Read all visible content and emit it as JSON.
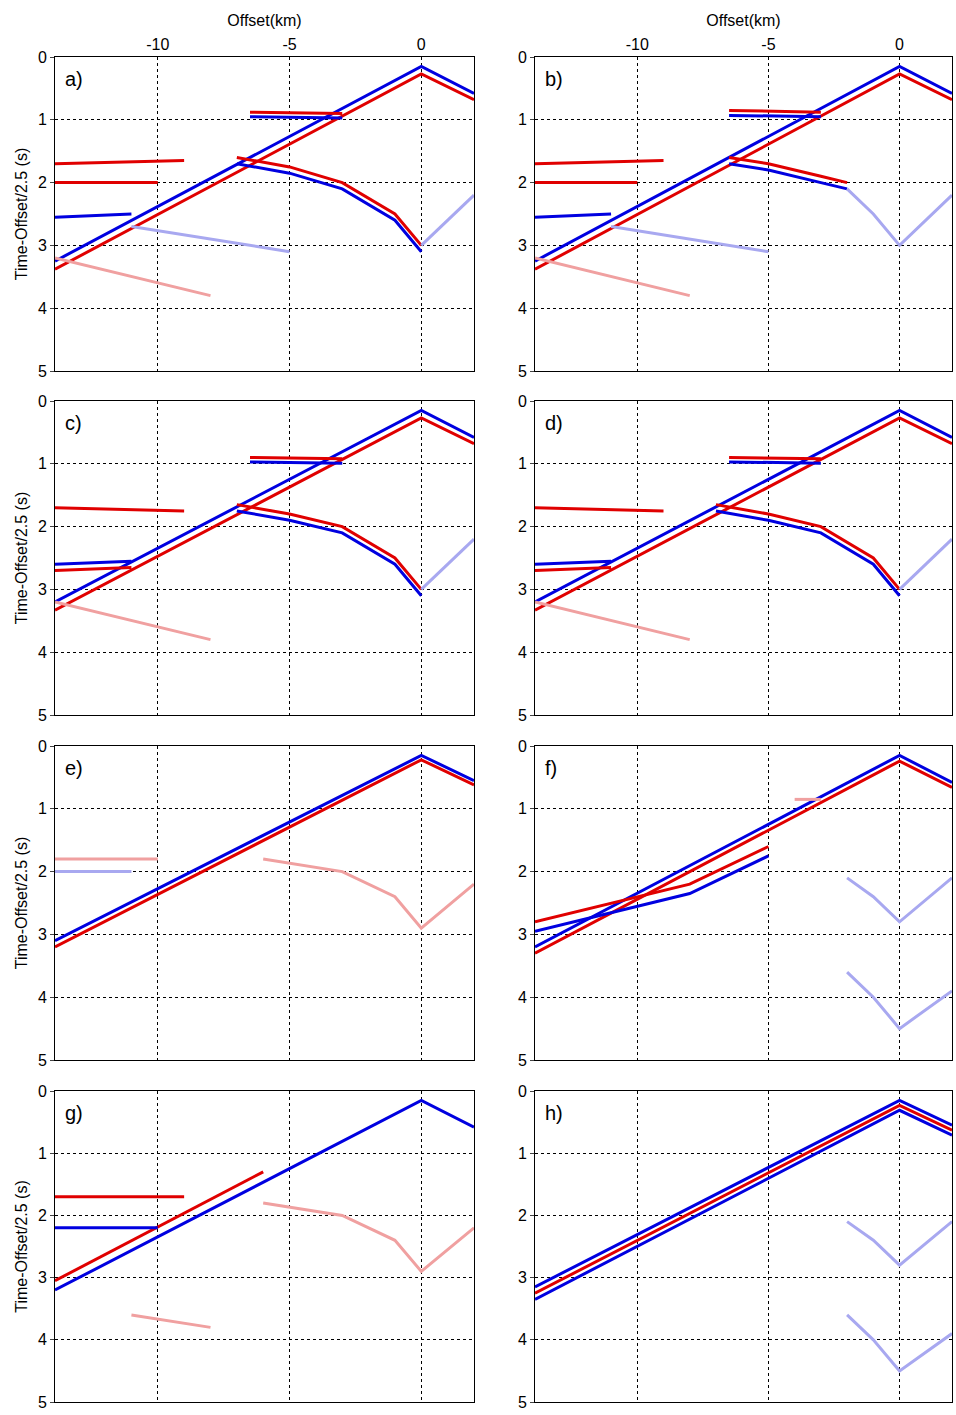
{
  "chart_data": [
    {
      "type": "line",
      "annotations": [
        "a)"
      ],
      "x_label": "Offset(km)",
      "y_label": "Time-Offset/2.5 (s)",
      "tick_labels": true,
      "grid": true,
      "xlim": [
        -13.9,
        2
      ],
      "ylim": [
        5,
        0
      ],
      "xticks": [
        -10,
        -5,
        0
      ],
      "yticks": [
        0,
        1,
        2,
        3,
        4,
        5
      ],
      "series": [
        {
          "color": "#0000e0",
          "x": [
            -13.9,
            0,
            2
          ],
          "values": [
            3.25,
            0.15,
            0.58
          ]
        },
        {
          "color": "#e00000",
          "x": [
            -13.9,
            0,
            2
          ],
          "values": [
            3.38,
            0.27,
            0.68
          ]
        },
        {
          "color": "#e00000",
          "x": [
            -6.5,
            -3
          ],
          "values": [
            0.88,
            0.9
          ]
        },
        {
          "color": "#0000e0",
          "x": [
            -6.5,
            -3
          ],
          "values": [
            0.95,
            0.97
          ]
        },
        {
          "color": "#e00000",
          "x": [
            -7,
            -5,
            -3,
            -1,
            0
          ],
          "values": [
            1.6,
            1.75,
            2.0,
            2.5,
            3.0
          ]
        },
        {
          "color": "#0000e0",
          "x": [
            -7,
            -5,
            -3,
            -1,
            0
          ],
          "values": [
            1.7,
            1.85,
            2.1,
            2.6,
            3.1
          ]
        },
        {
          "color": "#a8a8f0",
          "x": [
            0,
            2
          ],
          "values": [
            3.0,
            2.2
          ]
        },
        {
          "color": "#e00000",
          "x": [
            -13.9,
            -9
          ],
          "values": [
            1.7,
            1.65
          ]
        },
        {
          "color": "#e00000",
          "x": [
            -13.9,
            -10
          ],
          "values": [
            2.0,
            2.0
          ]
        },
        {
          "color": "#0000e0",
          "x": [
            -13.9,
            -11
          ],
          "values": [
            2.55,
            2.5
          ]
        },
        {
          "color": "#f0a0a0",
          "x": [
            -13.9,
            -8
          ],
          "values": [
            3.2,
            3.8
          ]
        },
        {
          "color": "#a8a8f0",
          "x": [
            -11,
            -5
          ],
          "values": [
            2.7,
            3.1
          ]
        }
      ]
    },
    {
      "type": "line",
      "annotations": [
        "b)"
      ],
      "x_label": "Offset(km)",
      "tick_labels": true,
      "grid": true,
      "xlim": [
        -13.9,
        2
      ],
      "ylim": [
        5,
        0
      ],
      "xticks": [
        -10,
        -5,
        0
      ],
      "yticks": [
        0,
        1,
        2,
        3,
        4,
        5
      ],
      "series": [
        {
          "color": "#0000e0",
          "x": [
            -13.9,
            0,
            2
          ],
          "values": [
            3.25,
            0.15,
            0.58
          ]
        },
        {
          "color": "#e00000",
          "x": [
            -13.9,
            0,
            2
          ],
          "values": [
            3.38,
            0.27,
            0.68
          ]
        },
        {
          "color": "#e00000",
          "x": [
            -6.5,
            -3
          ],
          "values": [
            0.85,
            0.88
          ]
        },
        {
          "color": "#0000e0",
          "x": [
            -6.5,
            -3
          ],
          "values": [
            0.93,
            0.95
          ]
        },
        {
          "color": "#e00000",
          "x": [
            -6.5,
            -5,
            -3,
            -2
          ],
          "values": [
            1.6,
            1.7,
            1.9,
            2.0
          ]
        },
        {
          "color": "#0000e0",
          "x": [
            -6.5,
            -5,
            -3,
            -2
          ],
          "values": [
            1.7,
            1.8,
            2.0,
            2.1
          ]
        },
        {
          "color": "#a8a8f0",
          "x": [
            -2,
            -1,
            0,
            2
          ],
          "values": [
            2.1,
            2.5,
            3.0,
            2.2
          ]
        },
        {
          "color": "#e00000",
          "x": [
            -13.9,
            -9
          ],
          "values": [
            1.7,
            1.65
          ]
        },
        {
          "color": "#e00000",
          "x": [
            -13.9,
            -10
          ],
          "values": [
            2.0,
            2.0
          ]
        },
        {
          "color": "#0000e0",
          "x": [
            -13.9,
            -11
          ],
          "values": [
            2.55,
            2.5
          ]
        },
        {
          "color": "#f0a0a0",
          "x": [
            -13.9,
            -8
          ],
          "values": [
            3.2,
            3.8
          ]
        },
        {
          "color": "#a8a8f0",
          "x": [
            -11,
            -5
          ],
          "values": [
            2.7,
            3.1
          ]
        }
      ]
    },
    {
      "type": "line",
      "annotations": [
        "c)"
      ],
      "y_label": "Time-Offset/2.5 (s)",
      "tick_labels": "y",
      "grid": true,
      "xlim": [
        -13.9,
        2
      ],
      "ylim": [
        5,
        0
      ],
      "xticks": [
        -10,
        -5,
        0
      ],
      "yticks": [
        0,
        1,
        2,
        3,
        4,
        5
      ],
      "series": [
        {
          "color": "#0000e0",
          "x": [
            -13.9,
            0,
            2
          ],
          "values": [
            3.2,
            0.15,
            0.58
          ]
        },
        {
          "color": "#e00000",
          "x": [
            -13.9,
            0,
            2
          ],
          "values": [
            3.33,
            0.27,
            0.68
          ]
        },
        {
          "color": "#e00000",
          "x": [
            -6.5,
            -3
          ],
          "values": [
            0.9,
            0.92
          ]
        },
        {
          "color": "#0000e0",
          "x": [
            -6.5,
            -3
          ],
          "values": [
            0.97,
            0.99
          ]
        },
        {
          "color": "#e00000",
          "x": [
            -7,
            -5,
            -3,
            -1,
            0
          ],
          "values": [
            1.65,
            1.8,
            2.0,
            2.5,
            3.0
          ]
        },
        {
          "color": "#0000e0",
          "x": [
            -7,
            -5,
            -3,
            -1,
            0
          ],
          "values": [
            1.75,
            1.9,
            2.1,
            2.6,
            3.1
          ]
        },
        {
          "color": "#a8a8f0",
          "x": [
            0,
            2
          ],
          "values": [
            3.0,
            2.2
          ]
        },
        {
          "color": "#e00000",
          "x": [
            -13.9,
            -9
          ],
          "values": [
            1.7,
            1.75
          ]
        },
        {
          "color": "#0000e0",
          "x": [
            -13.9,
            -11
          ],
          "values": [
            2.6,
            2.55
          ]
        },
        {
          "color": "#e00000",
          "x": [
            -13.9,
            -11
          ],
          "values": [
            2.7,
            2.65
          ]
        },
        {
          "color": "#f0a0a0",
          "x": [
            -13.9,
            -8
          ],
          "values": [
            3.2,
            3.8
          ]
        }
      ]
    },
    {
      "type": "line",
      "annotations": [
        "d)"
      ],
      "tick_labels": "y",
      "grid": true,
      "xlim": [
        -13.9,
        2
      ],
      "ylim": [
        5,
        0
      ],
      "xticks": [
        -10,
        -5,
        0
      ],
      "yticks": [
        0,
        1,
        2,
        3,
        4,
        5
      ],
      "series": [
        {
          "color": "#0000e0",
          "x": [
            -13.9,
            0,
            2
          ],
          "values": [
            3.2,
            0.15,
            0.58
          ]
        },
        {
          "color": "#e00000",
          "x": [
            -13.9,
            0,
            2
          ],
          "values": [
            3.33,
            0.27,
            0.68
          ]
        },
        {
          "color": "#e00000",
          "x": [
            -6.5,
            -3
          ],
          "values": [
            0.9,
            0.92
          ]
        },
        {
          "color": "#0000e0",
          "x": [
            -6.5,
            -3
          ],
          "values": [
            0.97,
            0.99
          ]
        },
        {
          "color": "#e00000",
          "x": [
            -7,
            -5,
            -3,
            -1,
            0
          ],
          "values": [
            1.65,
            1.8,
            2.0,
            2.5,
            3.0
          ]
        },
        {
          "color": "#0000e0",
          "x": [
            -7,
            -5,
            -3,
            -1,
            0
          ],
          "values": [
            1.75,
            1.9,
            2.1,
            2.6,
            3.1
          ]
        },
        {
          "color": "#a8a8f0",
          "x": [
            0,
            2
          ],
          "values": [
            3.0,
            2.2
          ]
        },
        {
          "color": "#e00000",
          "x": [
            -13.9,
            -9
          ],
          "values": [
            1.7,
            1.75
          ]
        },
        {
          "color": "#0000e0",
          "x": [
            -13.9,
            -11
          ],
          "values": [
            2.6,
            2.55
          ]
        },
        {
          "color": "#e00000",
          "x": [
            -13.9,
            -11
          ],
          "values": [
            2.7,
            2.65
          ]
        },
        {
          "color": "#f0a0a0",
          "x": [
            -13.9,
            -8
          ],
          "values": [
            3.2,
            3.8
          ]
        }
      ]
    },
    {
      "type": "line",
      "annotations": [
        "e)"
      ],
      "y_label": "Time-Offset/2.5 (s)",
      "tick_labels": "y",
      "grid": true,
      "xlim": [
        -13.9,
        2
      ],
      "ylim": [
        5,
        0
      ],
      "xticks": [
        -10,
        -5,
        0
      ],
      "yticks": [
        0,
        1,
        2,
        3,
        4,
        5
      ],
      "series": [
        {
          "color": "#0000e0",
          "x": [
            -13.9,
            0,
            2
          ],
          "values": [
            3.1,
            0.15,
            0.55
          ]
        },
        {
          "color": "#e00000",
          "x": [
            -13.9,
            0,
            2
          ],
          "values": [
            3.2,
            0.22,
            0.62
          ]
        },
        {
          "color": "#f0a0a0",
          "x": [
            -6,
            -3,
            -1,
            0,
            2
          ],
          "values": [
            1.8,
            2.0,
            2.4,
            2.9,
            2.2
          ]
        },
        {
          "color": "#f0a0a0",
          "x": [
            -13.9,
            -10
          ],
          "values": [
            1.8,
            1.8
          ]
        },
        {
          "color": "#a8a8f0",
          "x": [
            -13.9,
            -11
          ],
          "values": [
            2.0,
            2.0
          ]
        }
      ]
    },
    {
      "type": "line",
      "annotations": [
        "f)"
      ],
      "tick_labels": "y",
      "grid": true,
      "xlim": [
        -13.9,
        2
      ],
      "ylim": [
        5,
        0
      ],
      "xticks": [
        -10,
        -5,
        0
      ],
      "yticks": [
        0,
        1,
        2,
        3,
        4,
        5
      ],
      "series": [
        {
          "color": "#0000e0",
          "x": [
            -13.9,
            0,
            2
          ],
          "values": [
            3.2,
            0.15,
            0.58
          ]
        },
        {
          "color": "#e00000",
          "x": [
            -13.9,
            0,
            2
          ],
          "values": [
            3.3,
            0.24,
            0.66
          ]
        },
        {
          "color": "#e00000",
          "x": [
            -13.9,
            -8,
            -5
          ],
          "values": [
            2.8,
            2.2,
            1.6
          ]
        },
        {
          "color": "#0000e0",
          "x": [
            -13.9,
            -8,
            -5
          ],
          "values": [
            2.95,
            2.35,
            1.75
          ]
        },
        {
          "color": "#f0a0a0",
          "x": [
            -4,
            -3
          ],
          "values": [
            0.85,
            0.85
          ]
        },
        {
          "color": "#a8a8f0",
          "x": [
            -2,
            -1,
            0,
            2
          ],
          "values": [
            2.1,
            2.4,
            2.8,
            2.1
          ]
        },
        {
          "color": "#a8a8f0",
          "x": [
            -2,
            -1,
            0,
            2
          ],
          "values": [
            3.6,
            4.0,
            4.5,
            3.9
          ]
        }
      ]
    },
    {
      "type": "line",
      "annotations": [
        "g)"
      ],
      "y_label": "Time-Offset/2.5 (s)",
      "tick_labels": "y",
      "grid": true,
      "xlim": [
        -13.9,
        2
      ],
      "ylim": [
        5,
        0
      ],
      "xticks": [
        -10,
        -5,
        0
      ],
      "yticks": [
        0,
        1,
        2,
        3,
        4,
        5
      ],
      "series": [
        {
          "color": "#0000e0",
          "x": [
            -13.9,
            0,
            2
          ],
          "values": [
            3.2,
            0.15,
            0.58
          ]
        },
        {
          "color": "#e00000",
          "x": [
            -13.9,
            -6
          ],
          "values": [
            3.05,
            1.3
          ]
        },
        {
          "color": "#e00000",
          "x": [
            -13.9,
            -9
          ],
          "values": [
            1.7,
            1.7
          ]
        },
        {
          "color": "#0000e0",
          "x": [
            -13.9,
            -10
          ],
          "values": [
            2.2,
            2.2
          ]
        },
        {
          "color": "#f0a0a0",
          "x": [
            -6,
            -3,
            -1,
            0,
            2
          ],
          "values": [
            1.8,
            2.0,
            2.4,
            2.9,
            2.2
          ]
        },
        {
          "color": "#f0a0a0",
          "x": [
            -11,
            -8
          ],
          "values": [
            3.6,
            3.8
          ]
        }
      ]
    },
    {
      "type": "line",
      "annotations": [
        "h)"
      ],
      "tick_labels": "y",
      "grid": true,
      "xlim": [
        -13.9,
        2
      ],
      "ylim": [
        5,
        0
      ],
      "xticks": [
        -10,
        -5,
        0
      ],
      "yticks": [
        0,
        1,
        2,
        3,
        4,
        5
      ],
      "series": [
        {
          "color": "#0000e0",
          "x": [
            -13.9,
            0,
            2
          ],
          "values": [
            3.15,
            0.15,
            0.55
          ]
        },
        {
          "color": "#e00000",
          "x": [
            -13.9,
            0,
            2
          ],
          "values": [
            3.25,
            0.23,
            0.63
          ]
        },
        {
          "color": "#0000e0",
          "x": [
            -13.9,
            0,
            2
          ],
          "values": [
            3.35,
            0.31,
            0.71
          ]
        },
        {
          "color": "#a8a8f0",
          "x": [
            -2,
            -1,
            0,
            2
          ],
          "values": [
            2.1,
            2.4,
            2.8,
            2.1
          ]
        },
        {
          "color": "#a8a8f0",
          "x": [
            -2,
            -1,
            0,
            2
          ],
          "values": [
            3.6,
            4.0,
            4.5,
            3.9
          ]
        }
      ]
    }
  ]
}
